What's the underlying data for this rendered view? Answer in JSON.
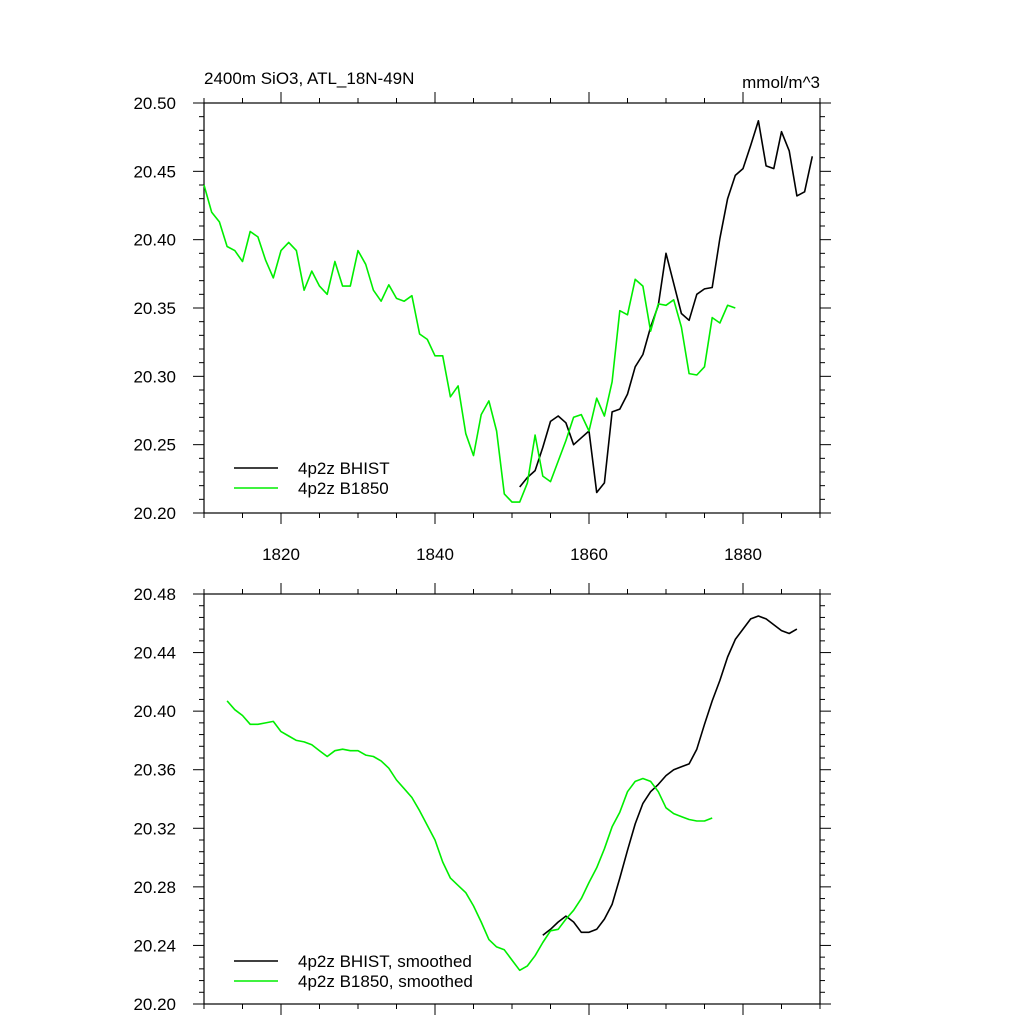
{
  "chart_data": [
    {
      "type": "line",
      "title": "2400m SiO3, ATL_18N-49N",
      "units": "mmol/m^3",
      "xlim": [
        1810,
        1890
      ],
      "ylim": [
        20.2,
        20.5
      ],
      "xticks": [
        1820,
        1840,
        1860,
        1880
      ],
      "xtick_labels": [
        "1820",
        "1840",
        "1860",
        "1880"
      ],
      "yticks": [
        20.2,
        20.25,
        20.3,
        20.35,
        20.4,
        20.45,
        20.5
      ],
      "ytick_labels": [
        "20.20",
        "20.25",
        "20.30",
        "20.35",
        "20.40",
        "20.45",
        "20.50"
      ],
      "legend_position": "bottom-left",
      "series": [
        {
          "name": "4p2z BHIST",
          "color": "#000000",
          "x": [
            1851,
            1852,
            1853,
            1854,
            1855,
            1856,
            1857,
            1858,
            1859,
            1860,
            1861,
            1862,
            1863,
            1864,
            1865,
            1866,
            1867,
            1868,
            1869,
            1870,
            1871,
            1872,
            1873,
            1874,
            1875,
            1876,
            1877,
            1878,
            1879,
            1880,
            1881,
            1882,
            1883,
            1884,
            1885,
            1886,
            1887,
            1888,
            1889
          ],
          "y": [
            20.219,
            20.226,
            20.231,
            20.248,
            20.267,
            20.271,
            20.266,
            20.25,
            20.255,
            20.26,
            20.215,
            20.222,
            20.274,
            20.276,
            20.287,
            20.307,
            20.316,
            20.336,
            20.352,
            20.39,
            20.368,
            20.346,
            20.341,
            20.36,
            20.364,
            20.365,
            20.401,
            20.43,
            20.447,
            20.452,
            20.469,
            20.487,
            20.454,
            20.452,
            20.479,
            20.465,
            20.432,
            20.435,
            20.461
          ]
        },
        {
          "name": "4p2z B1850",
          "color": "#00ee00",
          "x": [
            1810,
            1811,
            1812,
            1813,
            1814,
            1815,
            1816,
            1817,
            1818,
            1819,
            1820,
            1821,
            1822,
            1823,
            1824,
            1825,
            1826,
            1827,
            1828,
            1829,
            1830,
            1831,
            1832,
            1833,
            1834,
            1835,
            1836,
            1837,
            1838,
            1839,
            1840,
            1841,
            1842,
            1843,
            1844,
            1845,
            1846,
            1847,
            1848,
            1849,
            1850,
            1851,
            1852,
            1853,
            1854,
            1855,
            1856,
            1857,
            1858,
            1859,
            1860,
            1861,
            1862,
            1863,
            1864,
            1865,
            1866,
            1867,
            1868,
            1869,
            1870,
            1871,
            1872,
            1873,
            1874,
            1875,
            1876,
            1877,
            1878,
            1879
          ],
          "y": [
            20.44,
            20.42,
            20.413,
            20.395,
            20.392,
            20.384,
            20.406,
            20.402,
            20.385,
            20.372,
            20.392,
            20.398,
            20.392,
            20.363,
            20.377,
            20.366,
            20.36,
            20.384,
            20.366,
            20.366,
            20.392,
            20.382,
            20.363,
            20.355,
            20.367,
            20.357,
            20.355,
            20.359,
            20.331,
            20.327,
            20.315,
            20.315,
            20.285,
            20.293,
            20.258,
            20.242,
            20.272,
            20.282,
            20.26,
            20.214,
            20.208,
            20.208,
            20.222,
            20.257,
            20.227,
            20.223,
            20.238,
            20.253,
            20.27,
            20.272,
            20.26,
            20.284,
            20.271,
            20.296,
            20.348,
            20.345,
            20.371,
            20.366,
            20.333,
            20.353,
            20.352,
            20.356,
            20.336,
            20.302,
            20.301,
            20.307,
            20.343,
            20.339,
            20.352,
            20.35
          ]
        }
      ]
    },
    {
      "type": "line",
      "xlim": [
        1810,
        1890
      ],
      "ylim": [
        20.2,
        20.48
      ],
      "xticks": [
        1820,
        1840,
        1860,
        1880
      ],
      "xtick_labels": [],
      "yticks": [
        20.2,
        20.24,
        20.28,
        20.32,
        20.36,
        20.4,
        20.44,
        20.48
      ],
      "ytick_labels": [
        "20.20",
        "20.24",
        "20.28",
        "20.32",
        "20.36",
        "20.40",
        "20.44",
        "20.48"
      ],
      "legend_position": "bottom-left",
      "series": [
        {
          "name": "4p2z BHIST, smoothed",
          "color": "#000000",
          "x": [
            1854,
            1855,
            1856,
            1857,
            1858,
            1859,
            1860,
            1861,
            1862,
            1863,
            1864,
            1865,
            1866,
            1867,
            1868,
            1869,
            1870,
            1871,
            1872,
            1873,
            1874,
            1875,
            1876,
            1877,
            1878,
            1879,
            1880,
            1881,
            1882,
            1883,
            1884,
            1885,
            1886,
            1887
          ],
          "y": [
            20.247,
            20.251,
            20.256,
            20.26,
            20.256,
            20.249,
            20.249,
            20.251,
            20.258,
            20.268,
            20.286,
            20.305,
            20.323,
            20.337,
            20.345,
            20.35,
            20.356,
            20.36,
            20.362,
            20.364,
            20.374,
            20.391,
            20.407,
            20.421,
            20.437,
            20.449,
            20.456,
            20.463,
            20.465,
            20.463,
            20.459,
            20.455,
            20.453,
            20.456
          ]
        },
        {
          "name": "4p2z B1850, smoothed",
          "color": "#00ee00",
          "x": [
            1813,
            1814,
            1815,
            1816,
            1817,
            1818,
            1819,
            1820,
            1821,
            1822,
            1823,
            1824,
            1825,
            1826,
            1827,
            1828,
            1829,
            1830,
            1831,
            1832,
            1833,
            1834,
            1835,
            1836,
            1837,
            1838,
            1839,
            1840,
            1841,
            1842,
            1843,
            1844,
            1845,
            1846,
            1847,
            1848,
            1849,
            1850,
            1851,
            1852,
            1853,
            1854,
            1855,
            1856,
            1857,
            1858,
            1859,
            1860,
            1861,
            1862,
            1863,
            1864,
            1865,
            1866,
            1867,
            1868,
            1869,
            1870,
            1871,
            1872,
            1873,
            1874,
            1875,
            1876
          ],
          "y": [
            20.407,
            20.401,
            20.397,
            20.391,
            20.391,
            20.392,
            20.393,
            20.386,
            20.383,
            20.38,
            20.379,
            20.377,
            20.373,
            20.369,
            20.373,
            20.374,
            20.373,
            20.373,
            20.37,
            20.369,
            20.366,
            20.361,
            20.353,
            20.347,
            20.341,
            20.332,
            20.322,
            20.312,
            20.297,
            20.286,
            20.281,
            20.276,
            20.267,
            20.256,
            20.244,
            20.239,
            20.237,
            20.23,
            20.223,
            20.226,
            20.233,
            20.242,
            20.25,
            20.251,
            20.258,
            20.264,
            20.272,
            20.283,
            20.293,
            20.306,
            20.321,
            20.331,
            20.345,
            20.352,
            20.354,
            20.352,
            20.345,
            20.334,
            20.33,
            20.328,
            20.326,
            20.325,
            20.325,
            20.327
          ]
        }
      ]
    }
  ]
}
